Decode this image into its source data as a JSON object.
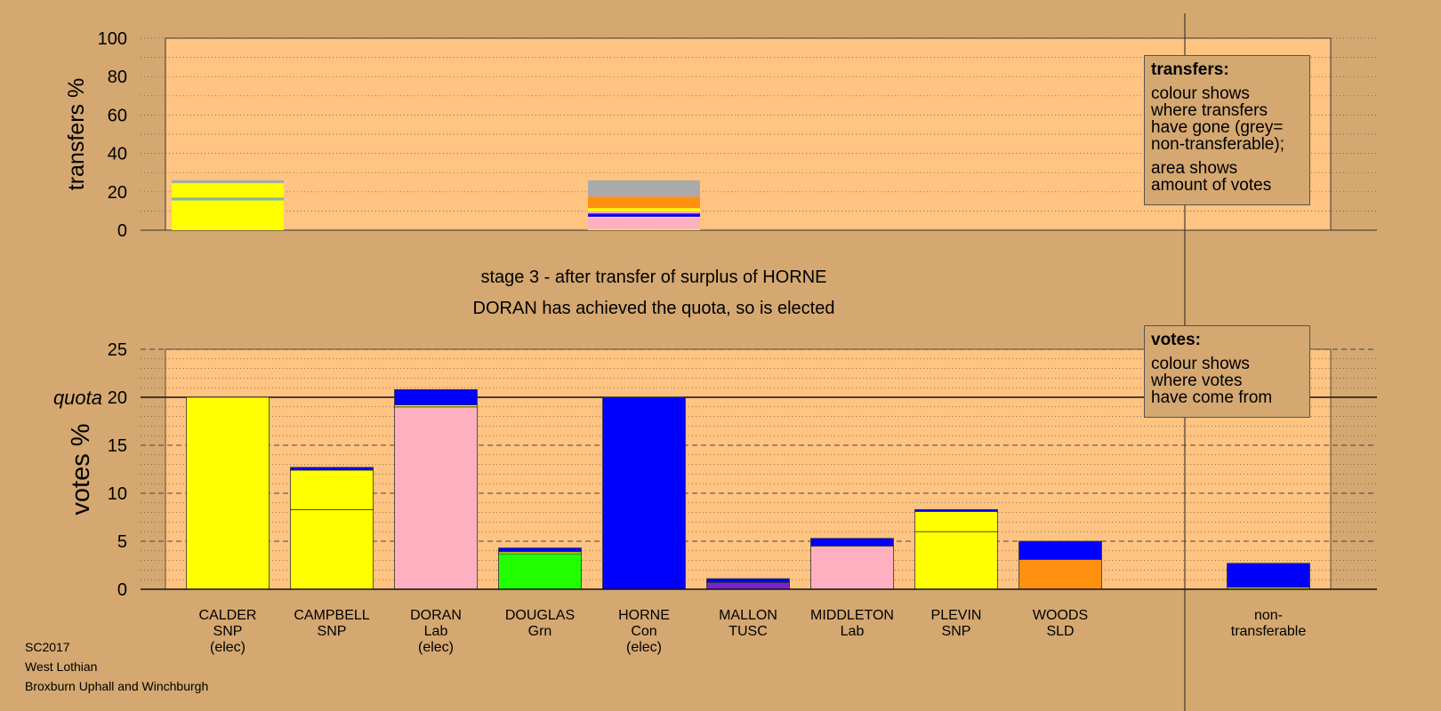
{
  "colors": {
    "background": "#d4a870",
    "plot": "#ffc382",
    "SNP": "#ffff00",
    "Lab": "#ffb0c0",
    "Grn": "#22ff00",
    "Con": "#0000ff",
    "TUSC": "#7a22cc",
    "SLD": "#ff9010",
    "nontransferable": "#aaaaaa"
  },
  "titles": {
    "stage": "stage 3 - after transfer of surplus of HORNE",
    "status": "DORAN has achieved the quota, so is elected"
  },
  "transfers_box": {
    "heading": "transfers:",
    "lines": [
      "colour shows",
      "where transfers",
      "have gone (grey=",
      "non-transferable);"
    ],
    "lines2": [
      "area shows",
      "amount of votes"
    ]
  },
  "votes_box": {
    "heading": "votes:",
    "lines": [
      "colour shows",
      "where votes",
      "have come from"
    ]
  },
  "footer": {
    "line1": "SC2017",
    "line2": "West Lothian",
    "line3": "Broxburn Uphall and Winchburgh"
  },
  "chart_data": [
    {
      "type": "bar",
      "ylabel": "transfers %",
      "ylim": [
        0,
        100
      ],
      "yticks": [
        0,
        20,
        40,
        60,
        80,
        100
      ],
      "grid": true,
      "bars": [
        {
          "name": "CALDER",
          "segments": [
            {
              "value": 15.5,
              "color": "#ffff00"
            },
            {
              "value": 1.5,
              "color": "#7fb8a0"
            },
            {
              "value": 7.5,
              "color": "#ffff00"
            },
            {
              "value": 1.5,
              "color": "#aaaaaa"
            }
          ]
        },
        {
          "name": "HORNE",
          "segments": [
            {
              "value": 0.6,
              "color": "#ffff00"
            },
            {
              "value": 6.0,
              "color": "#ffb0c0"
            },
            {
              "value": 0.4,
              "color": "#ffff00"
            },
            {
              "value": 1.3,
              "color": "#0000ff"
            },
            {
              "value": 0.6,
              "color": "#7a22cc"
            },
            {
              "value": 1.1,
              "color": "#ffb0c0"
            },
            {
              "value": 1.5,
              "color": "#ffff00"
            },
            {
              "value": 6.0,
              "color": "#ff9010"
            },
            {
              "value": 8.5,
              "color": "#aaaaaa"
            }
          ]
        }
      ]
    },
    {
      "type": "bar",
      "ylabel": "votes %",
      "ylim": [
        0,
        25
      ],
      "yticks": [
        0,
        5,
        10,
        15,
        20,
        25
      ],
      "quota": {
        "value": 20,
        "label": "quota"
      },
      "grid": true,
      "candidates": [
        {
          "name": "CALDER",
          "party": "SNP",
          "note": "(elec)",
          "segments": [
            {
              "value": 20.0,
              "color": "#ffff00"
            }
          ]
        },
        {
          "name": "CAMPBELL",
          "party": "SNP",
          "note": "",
          "segments": [
            {
              "value": 8.3,
              "color": "#ffff00"
            },
            {
              "value": 4.1,
              "color": "#ffff00"
            },
            {
              "value": 0.3,
              "color": "#0000ff"
            }
          ]
        },
        {
          "name": "DORAN",
          "party": "Lab",
          "note": "(elec)",
          "segments": [
            {
              "value": 19.0,
              "color": "#ffb0c0"
            },
            {
              "value": 0.2,
              "color": "#ffff00"
            },
            {
              "value": 1.6,
              "color": "#0000ff"
            }
          ]
        },
        {
          "name": "DOUGLAS",
          "party": "Grn",
          "note": "",
          "segments": [
            {
              "value": 3.7,
              "color": "#22ff00"
            },
            {
              "value": 0.2,
              "color": "#ffff00"
            },
            {
              "value": 0.4,
              "color": "#0000ff"
            }
          ]
        },
        {
          "name": "HORNE",
          "party": "Con",
          "note": "(elec)",
          "segments": [
            {
              "value": 20.0,
              "color": "#0000ff"
            }
          ]
        },
        {
          "name": "MALLON",
          "party": "TUSC",
          "note": "",
          "segments": [
            {
              "value": 0.7,
              "color": "#7a22cc"
            },
            {
              "value": 0.4,
              "color": "#0000ff"
            }
          ]
        },
        {
          "name": "MIDDLETON",
          "party": "Lab",
          "note": "",
          "segments": [
            {
              "value": 4.5,
              "color": "#ffb0c0"
            },
            {
              "value": 0.8,
              "color": "#0000ff"
            }
          ]
        },
        {
          "name": "PLEVIN",
          "party": "SNP",
          "note": "",
          "segments": [
            {
              "value": 6.0,
              "color": "#ffff00"
            },
            {
              "value": 2.1,
              "color": "#ffff00"
            },
            {
              "value": 0.2,
              "color": "#0000ff"
            }
          ]
        },
        {
          "name": "WOODS",
          "party": "SLD",
          "note": "",
          "segments": [
            {
              "value": 3.1,
              "color": "#ff9010"
            },
            {
              "value": 1.9,
              "color": "#0000ff"
            }
          ]
        }
      ],
      "nontransferable": {
        "name": "non-",
        "name2": "transferable",
        "segments": [
          {
            "value": 0.2,
            "color": "#ffff00"
          },
          {
            "value": 2.5,
            "color": "#0000ff"
          }
        ]
      }
    }
  ]
}
